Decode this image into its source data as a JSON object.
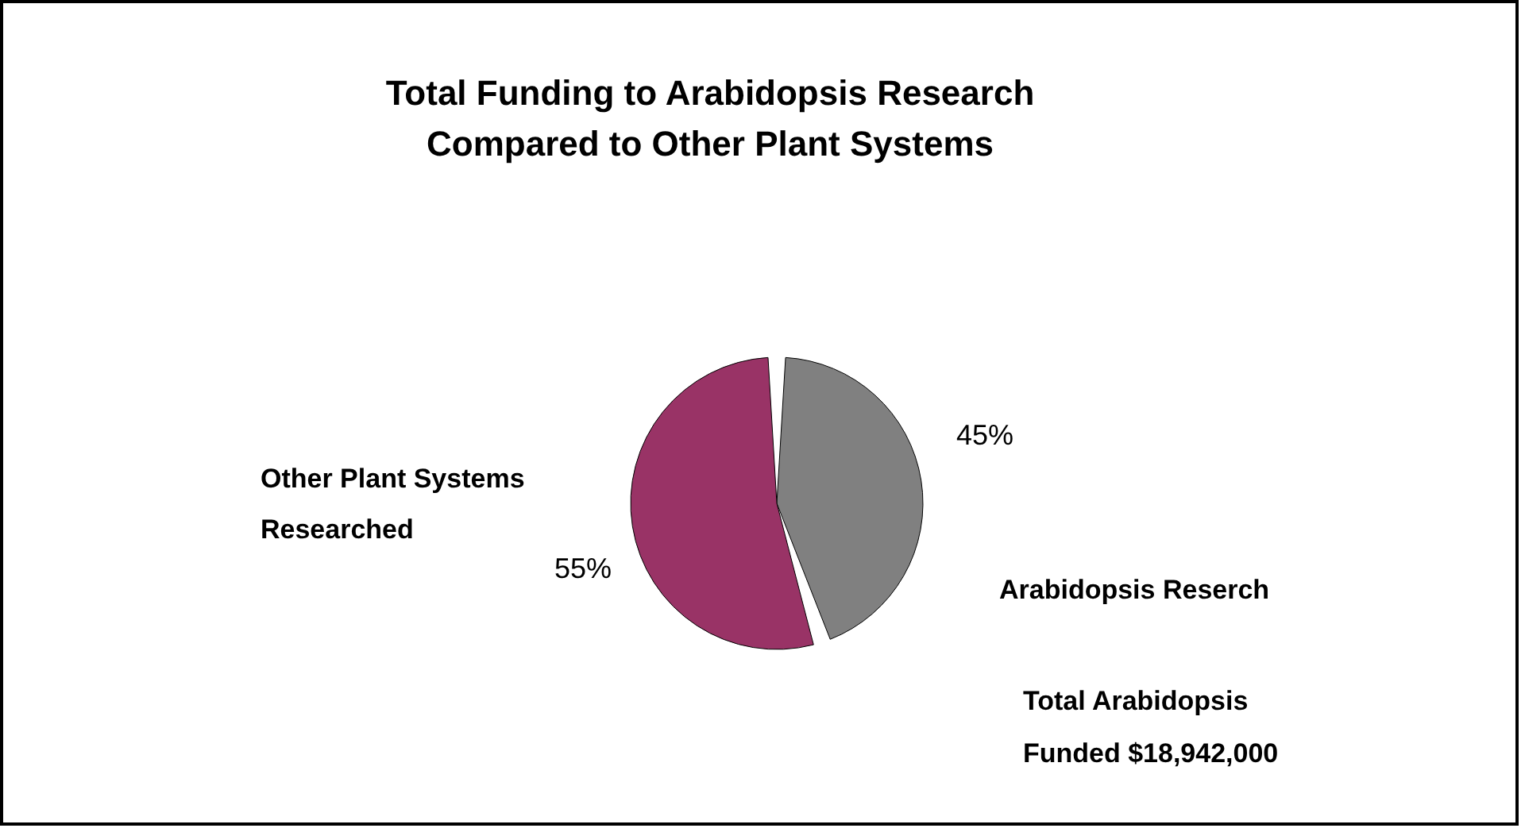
{
  "chart_data": {
    "type": "pie",
    "title": "Total Funding to Arabidopsis Research\nCompared to Other Plant Systems",
    "categories": [
      "Arabidopsis Reserch",
      "Other Plant Systems\nResearched"
    ],
    "values": [
      45,
      55
    ],
    "colors": [
      "#808080",
      "#993366"
    ],
    "value_labels": [
      "45%",
      "55%"
    ],
    "annotations": [
      "Total Arabidopsis\nFunded $18,942,000"
    ]
  }
}
